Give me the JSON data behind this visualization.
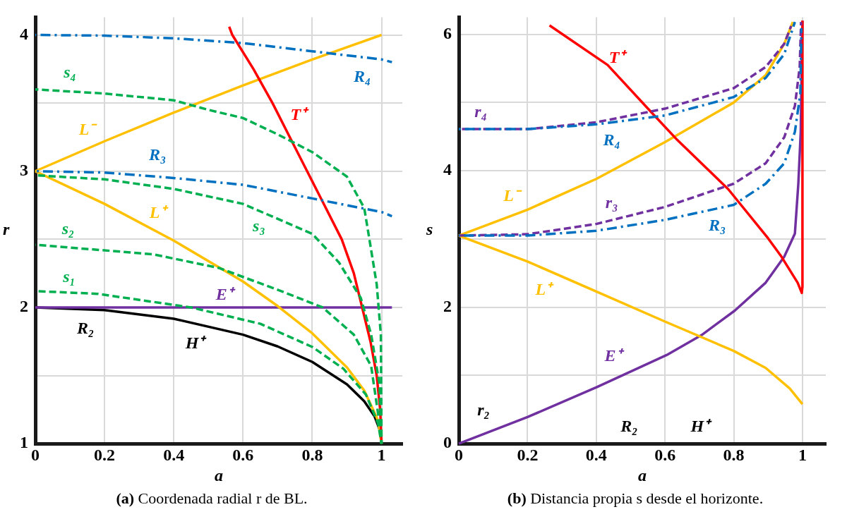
{
  "chart_data": [
    {
      "type": "line",
      "title": "(a) Coordenada radial r de BL.",
      "xlabel": "a",
      "ylabel": "r",
      "xlim": [
        0,
        1.06
      ],
      "ylim": [
        1,
        4.13
      ],
      "xticks": [
        0,
        0.2,
        0.4,
        0.6,
        0.8,
        1
      ],
      "yticks": [
        1,
        {
          "value": 1.5,
          "label": null
        },
        2,
        {
          "value": 2.5,
          "label": null
        },
        3,
        {
          "value": 3.5,
          "label": null
        },
        4
      ],
      "grid": true,
      "annotations": [
        "R₂"
      ],
      "series": [
        {
          "name": "H⁺",
          "color": "#000000",
          "line_style": "solid",
          "x": [
            0,
            0.2,
            0.4,
            0.6,
            0.7,
            0.8,
            0.9,
            0.95,
            0.98,
            0.995,
            1
          ],
          "values": [
            2,
            1.98,
            1.917,
            1.8,
            1.714,
            1.6,
            1.436,
            1.312,
            1.2,
            1.1,
            1
          ]
        },
        {
          "name": "E⁺",
          "color": "#7030a0",
          "line_style": "solid",
          "x": [
            0,
            1.03
          ],
          "values": [
            2,
            2
          ]
        },
        {
          "name": "L⁺",
          "color": "#ffc000",
          "line_style": "solid",
          "x": [
            0,
            0.2,
            0.4,
            0.6,
            0.7,
            0.8,
            0.9,
            0.95,
            0.99,
            1
          ],
          "values": [
            3,
            2.76,
            2.49,
            2.19,
            2.01,
            1.81,
            1.56,
            1.39,
            1.17,
            1
          ]
        },
        {
          "name": "L⁻",
          "color": "#ffc000",
          "line_style": "solid",
          "x": [
            0,
            0.2,
            0.4,
            0.6,
            0.8,
            1
          ],
          "values": [
            3,
            3.22,
            3.43,
            3.63,
            3.82,
            4
          ]
        },
        {
          "name": "T⁺",
          "color": "#ff0000",
          "line_style": "solid",
          "x": [
            0.56,
            0.569,
            0.63,
            0.685,
            0.735,
            0.785,
            0.835,
            0.885,
            0.92,
            0.944,
            0.968,
            0.986,
            0.996,
            1
          ],
          "values": [
            4.06,
            4,
            3.75,
            3.5,
            3.25,
            3,
            2.75,
            2.5,
            2.25,
            2,
            1.75,
            1.5,
            1.25,
            1
          ]
        },
        {
          "name": "s₁",
          "color": "#00b050",
          "line_style": "dashed",
          "x": [
            0,
            0.18,
            0.45,
            0.65,
            0.8,
            0.89,
            0.955,
            0.99,
            1
          ],
          "values": [
            2.12,
            2.1,
            2,
            1.88,
            1.71,
            1.55,
            1.36,
            1.15,
            1
          ]
        },
        {
          "name": "s₂",
          "color": "#00b050",
          "line_style": "dashed",
          "x": [
            0,
            0.34,
            0.53,
            0.72,
            0.83,
            0.92,
            0.97,
            0.994,
            1
          ],
          "values": [
            2.46,
            2.39,
            2.29,
            2.11,
            2,
            1.8,
            1.57,
            1.15,
            1
          ]
        },
        {
          "name": "s₃",
          "color": "#00b050",
          "line_style": "dashed",
          "x": [
            0,
            0.2,
            0.4,
            0.6,
            0.8,
            0.877,
            0.94,
            0.97,
            0.994,
            1
          ],
          "values": [
            2.97,
            2.94,
            2.87,
            2.76,
            2.54,
            2.33,
            2.07,
            1.8,
            1.44,
            1
          ]
        },
        {
          "name": "s₄",
          "color": "#00b050",
          "line_style": "dashed",
          "x": [
            0,
            0.2,
            0.4,
            0.5,
            0.6,
            0.7,
            0.8,
            0.9,
            0.95,
            0.963,
            0.986,
            0.998,
            1
          ],
          "values": [
            3.6,
            3.57,
            3.52,
            3.45,
            3.39,
            3.27,
            3.14,
            2.96,
            2.73,
            2.53,
            2.17,
            1.8,
            1
          ]
        },
        {
          "name": "R₃",
          "color": "#0070c0",
          "line_style": "dashdot",
          "x": [
            0,
            0.2,
            0.4,
            0.6,
            0.8,
            1,
            1.03
          ],
          "values": [
            3,
            2.99,
            2.95,
            2.9,
            2.8,
            2.7,
            2.67
          ]
        },
        {
          "name": "R₄",
          "color": "#0070c0",
          "line_style": "dashdot",
          "x": [
            0,
            0.2,
            0.4,
            0.6,
            0.8,
            1,
            1.03
          ],
          "values": [
            4,
            3.995,
            3.975,
            3.94,
            3.88,
            3.82,
            3.8
          ]
        }
      ]
    },
    {
      "type": "line",
      "title": "(b) Distancia propia s desde el horizonte.",
      "xlabel": "a",
      "ylabel": "s",
      "xlim": [
        0,
        1.068
      ],
      "ylim": [
        0,
        6.25
      ],
      "xticks": [
        0,
        0.2,
        0.4,
        0.6,
        0.8,
        1
      ],
      "yticks": [
        0,
        {
          "value": 1,
          "label": null
        },
        2,
        {
          "value": 3,
          "label": null
        },
        4,
        {
          "value": 5,
          "label": null
        },
        6
      ],
      "grid": true,
      "annotations": [
        "r₂",
        "R₂",
        "H⁺"
      ],
      "series": [
        {
          "name": "E⁺",
          "color": "#7030a0",
          "line_style": "solid",
          "x": [
            0,
            0.2,
            0.402,
            0.605,
            0.706,
            0.803,
            0.893,
            0.947,
            0.978,
            0.988,
            0.995,
            0.998,
            1
          ],
          "values": [
            0,
            0.39,
            0.83,
            1.3,
            1.59,
            1.95,
            2.36,
            2.74,
            3.08,
            3.81,
            4.57,
            5.65,
            6.2
          ]
        },
        {
          "name": "L⁺",
          "color": "#ffc000",
          "line_style": "solid",
          "x": [
            0,
            0.2,
            0.4,
            0.6,
            0.8,
            0.893,
            0.963,
            1
          ],
          "values": [
            3.05,
            2.67,
            2.23,
            1.79,
            1.36,
            1.11,
            0.81,
            0.58
          ]
        },
        {
          "name": "L⁻",
          "color": "#ffc000",
          "line_style": "solid",
          "x": [
            0,
            0.2,
            0.4,
            0.6,
            0.8,
            0.893,
            0.947,
            0.972
          ],
          "values": [
            3.05,
            3.43,
            3.88,
            4.42,
            5,
            5.4,
            5.86,
            6.18
          ]
        },
        {
          "name": "T⁺",
          "color": "#ff0000",
          "line_style": "solid",
          "x": [
            0.264,
            0.433,
            0.558,
            0.636,
            0.784,
            0.9,
            0.939,
            0.986,
            0.998,
            1,
            1
          ],
          "values": [
            6.13,
            5.55,
            4.87,
            4.45,
            3.73,
            3.01,
            2.74,
            2.36,
            2.21,
            2.3,
            6.2
          ]
        },
        {
          "name": "r₃",
          "color": "#7030a0",
          "line_style": "dashed",
          "x": [
            0,
            0.2,
            0.4,
            0.6,
            0.8,
            0.893,
            0.947,
            0.978,
            0.992,
            0.996
          ],
          "values": [
            3.05,
            3.07,
            3.22,
            3.47,
            3.81,
            4.11,
            4.49,
            4.95,
            5.52,
            6.18
          ]
        },
        {
          "name": "R₃",
          "color": "#0070c0",
          "line_style": "dashdot",
          "x": [
            0,
            0.2,
            0.4,
            0.6,
            0.8,
            0.893,
            0.947,
            0.978,
            0.994,
            0.997
          ],
          "values": [
            3.05,
            3.05,
            3.12,
            3.28,
            3.5,
            3.81,
            4.11,
            4.57,
            5.14,
            6.09
          ]
        },
        {
          "name": "r₄",
          "color": "#7030a0",
          "line_style": "dashed",
          "x": [
            0,
            0.2,
            0.4,
            0.6,
            0.8,
            0.893,
            0.947,
            0.967
          ],
          "values": [
            4.61,
            4.61,
            4.71,
            4.91,
            5.21,
            5.52,
            5.86,
            6.12
          ]
        },
        {
          "name": "R₄",
          "color": "#0070c0",
          "line_style": "dashdot",
          "x": [
            0,
            0.2,
            0.4,
            0.6,
            0.8,
            0.893,
            0.947,
            0.978
          ],
          "values": [
            4.61,
            4.61,
            4.68,
            4.81,
            5.08,
            5.36,
            5.71,
            6.18
          ]
        }
      ]
    }
  ]
}
